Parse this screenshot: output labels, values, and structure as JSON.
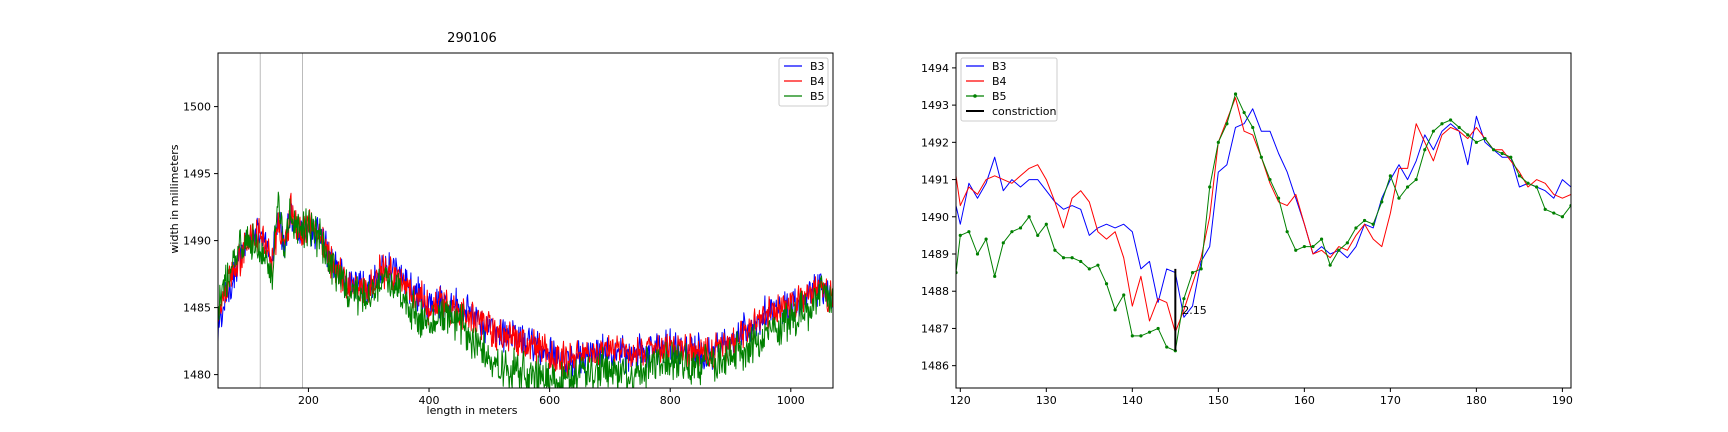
{
  "chart_data": [
    {
      "type": "line",
      "title": "290106",
      "xlabel": "length in meters",
      "ylabel": "width in millimeters",
      "xlim": [
        50,
        1070
      ],
      "ylim": [
        1479,
        1504
      ],
      "xticks": [
        200,
        400,
        600,
        800,
        1000
      ],
      "yticks": [
        1480,
        1485,
        1490,
        1495,
        1500
      ],
      "vlines": [
        120,
        190
      ],
      "legend_position": "top-right",
      "grid": false,
      "series": [
        {
          "name": "B3",
          "color": "#0000ff",
          "x": [
            50,
            60,
            80,
            100,
            120,
            140,
            150,
            160,
            170,
            180,
            190,
            200,
            220,
            240,
            260,
            280,
            300,
            320,
            350,
            380,
            400,
            420,
            450,
            470,
            500,
            530,
            560,
            600,
            630,
            660,
            700,
            730,
            760,
            800,
            830,
            860,
            900,
            930,
            960,
            1000,
            1030,
            1050,
            1070
          ],
          "values": [
            1483.0,
            1485.5,
            1488.0,
            1490.0,
            1490.8,
            1488.5,
            1492.0,
            1489.5,
            1492.0,
            1491.0,
            1490.5,
            1491.0,
            1490.5,
            1488.5,
            1487.0,
            1486.8,
            1486.5,
            1488.0,
            1487.5,
            1486.0,
            1485.0,
            1485.5,
            1485.0,
            1484.5,
            1483.5,
            1483.0,
            1482.5,
            1481.8,
            1481.0,
            1481.3,
            1482.0,
            1481.5,
            1481.8,
            1482.0,
            1482.0,
            1481.5,
            1482.5,
            1483.5,
            1484.5,
            1485.0,
            1486.0,
            1486.5,
            1485.5
          ]
        },
        {
          "name": "B4",
          "color": "#ff0000",
          "x": [
            50,
            60,
            80,
            100,
            120,
            140,
            150,
            160,
            170,
            180,
            190,
            200,
            220,
            240,
            260,
            280,
            300,
            320,
            350,
            380,
            400,
            420,
            450,
            470,
            500,
            530,
            560,
            600,
            630,
            660,
            700,
            730,
            760,
            800,
            830,
            860,
            900,
            930,
            960,
            1000,
            1030,
            1050,
            1070
          ],
          "values": [
            1484.0,
            1486.0,
            1488.0,
            1490.0,
            1490.5,
            1488.0,
            1491.5,
            1489.3,
            1492.3,
            1490.8,
            1490.5,
            1491.0,
            1490.3,
            1488.2,
            1487.0,
            1486.5,
            1486.3,
            1487.8,
            1487.3,
            1486.0,
            1485.0,
            1485.5,
            1484.8,
            1484.3,
            1483.3,
            1482.8,
            1482.5,
            1481.5,
            1481.0,
            1481.2,
            1482.0,
            1481.5,
            1481.8,
            1482.0,
            1481.8,
            1481.5,
            1482.3,
            1483.5,
            1484.5,
            1485.0,
            1486.0,
            1486.5,
            1485.5
          ]
        },
        {
          "name": "B5",
          "color": "#008000",
          "x": [
            50,
            60,
            80,
            100,
            120,
            140,
            150,
            160,
            170,
            180,
            190,
            200,
            220,
            240,
            260,
            280,
            300,
            320,
            350,
            380,
            400,
            420,
            450,
            470,
            500,
            530,
            560,
            600,
            630,
            660,
            700,
            730,
            760,
            800,
            830,
            860,
            900,
            930,
            960,
            1000,
            1030,
            1050,
            1070
          ],
          "values": [
            1485.0,
            1486.5,
            1489.0,
            1490.0,
            1489.5,
            1487.5,
            1493.0,
            1489.0,
            1492.0,
            1490.8,
            1490.8,
            1491.5,
            1490.0,
            1488.0,
            1486.5,
            1486.0,
            1485.5,
            1487.0,
            1486.0,
            1484.5,
            1483.5,
            1484.5,
            1484.0,
            1483.0,
            1481.0,
            1480.5,
            1480.0,
            1479.5,
            1479.8,
            1480.0,
            1480.5,
            1479.8,
            1480.5,
            1481.0,
            1480.8,
            1481.0,
            1481.5,
            1482.0,
            1483.0,
            1484.0,
            1485.0,
            1486.0,
            1485.5
          ]
        }
      ]
    },
    {
      "type": "line",
      "title": "",
      "xlabel": "",
      "ylabel": "",
      "xlim": [
        119.5,
        191
      ],
      "ylim": [
        1485.4,
        1494.4
      ],
      "xticks": [
        120,
        130,
        140,
        150,
        160,
        170,
        180,
        190
      ],
      "yticks": [
        1486,
        1487,
        1488,
        1489,
        1490,
        1491,
        1492,
        1493,
        1494
      ],
      "legend_position": "top-left",
      "grid": false,
      "constriction": {
        "name": "constriction",
        "x": 145,
        "y0": 1486.4,
        "y1": 1488.6,
        "color": "#000000"
      },
      "annotation": {
        "text": "2.15",
        "x": 145.8,
        "y": 1487.5
      },
      "series": [
        {
          "name": "B3",
          "color": "#0000ff",
          "marker": false,
          "x": [
            119.5,
            120,
            121,
            122,
            123,
            124,
            125,
            126,
            127,
            128,
            129,
            130,
            131,
            132,
            133,
            134,
            135,
            136,
            137,
            138,
            139,
            140,
            141,
            142,
            143,
            144,
            145,
            146,
            147,
            148,
            149,
            150,
            151,
            152,
            153,
            154,
            155,
            156,
            157,
            158,
            159,
            160,
            161,
            162,
            163,
            164,
            165,
            166,
            167,
            168,
            169,
            170,
            171,
            172,
            173,
            174,
            175,
            176,
            177,
            178,
            179,
            180,
            181,
            182,
            183,
            184,
            185,
            186,
            187,
            188,
            189,
            190,
            191
          ],
          "values": [
            1490.3,
            1489.8,
            1490.9,
            1490.5,
            1490.9,
            1491.6,
            1490.7,
            1491.0,
            1490.8,
            1491.0,
            1491.0,
            1490.7,
            1490.4,
            1490.2,
            1490.3,
            1490.2,
            1489.5,
            1489.7,
            1489.8,
            1489.7,
            1489.8,
            1489.6,
            1488.6,
            1488.8,
            1487.7,
            1488.6,
            1488.5,
            1487.3,
            1487.6,
            1488.8,
            1489.2,
            1491.2,
            1491.4,
            1492.4,
            1492.5,
            1492.9,
            1492.3,
            1492.3,
            1491.7,
            1491.2,
            1490.5,
            1489.8,
            1489.0,
            1489.2,
            1489.0,
            1489.1,
            1488.9,
            1489.2,
            1489.8,
            1489.7,
            1490.5,
            1491.0,
            1491.4,
            1491.0,
            1491.5,
            1492.2,
            1491.8,
            1492.3,
            1492.5,
            1492.3,
            1491.4,
            1492.7,
            1492.0,
            1491.8,
            1491.6,
            1491.6,
            1490.8,
            1490.9,
            1490.8,
            1490.7,
            1490.5,
            1491.0,
            1490.8
          ]
        },
        {
          "name": "B4",
          "color": "#ff0000",
          "marker": false,
          "x": [
            119.5,
            120,
            121,
            122,
            123,
            124,
            125,
            126,
            127,
            128,
            129,
            130,
            131,
            132,
            133,
            134,
            135,
            136,
            137,
            138,
            139,
            140,
            141,
            142,
            143,
            144,
            145,
            146,
            147,
            148,
            149,
            150,
            151,
            152,
            153,
            154,
            155,
            156,
            157,
            158,
            159,
            160,
            161,
            162,
            163,
            164,
            165,
            166,
            167,
            168,
            169,
            170,
            171,
            172,
            173,
            174,
            175,
            176,
            177,
            178,
            179,
            180,
            181,
            182,
            183,
            184,
            185,
            186,
            187,
            188,
            189,
            190,
            191
          ],
          "values": [
            1491.1,
            1490.3,
            1490.8,
            1490.6,
            1491.0,
            1491.1,
            1491.0,
            1490.9,
            1491.1,
            1491.3,
            1491.4,
            1491.0,
            1490.4,
            1489.7,
            1490.5,
            1490.7,
            1490.4,
            1489.6,
            1489.4,
            1489.6,
            1488.9,
            1487.6,
            1488.4,
            1487.2,
            1487.8,
            1487.7,
            1486.9,
            1487.5,
            1488.2,
            1488.9,
            1490.0,
            1492.0,
            1492.6,
            1493.2,
            1492.3,
            1492.2,
            1491.6,
            1490.9,
            1490.4,
            1490.3,
            1490.6,
            1489.8,
            1489.0,
            1489.1,
            1488.9,
            1489.2,
            1489.1,
            1489.5,
            1489.8,
            1489.4,
            1489.2,
            1490.1,
            1491.3,
            1491.3,
            1492.5,
            1492.0,
            1491.5,
            1492.2,
            1492.4,
            1492.3,
            1492.1,
            1492.4,
            1492.1,
            1491.8,
            1491.8,
            1491.5,
            1491.2,
            1490.8,
            1491.0,
            1490.9,
            1490.6,
            1490.5,
            1490.6
          ]
        },
        {
          "name": "B5",
          "color": "#008000",
          "marker": true,
          "x": [
            119.5,
            120,
            121,
            122,
            123,
            124,
            125,
            126,
            127,
            128,
            129,
            130,
            131,
            132,
            133,
            134,
            135,
            136,
            137,
            138,
            139,
            140,
            141,
            142,
            143,
            144,
            145,
            146,
            147,
            148,
            149,
            150,
            151,
            152,
            153,
            154,
            155,
            156,
            157,
            158,
            159,
            160,
            161,
            162,
            163,
            164,
            165,
            166,
            167,
            168,
            169,
            170,
            171,
            172,
            173,
            174,
            175,
            176,
            177,
            178,
            179,
            180,
            181,
            182,
            183,
            184,
            185,
            186,
            187,
            188,
            189,
            190,
            191
          ],
          "values": [
            1488.5,
            1489.5,
            1489.6,
            1489.0,
            1489.4,
            1488.4,
            1489.3,
            1489.6,
            1489.7,
            1490.0,
            1489.5,
            1489.8,
            1489.1,
            1488.9,
            1488.9,
            1488.8,
            1488.6,
            1488.7,
            1488.2,
            1487.5,
            1487.9,
            1486.8,
            1486.8,
            1486.9,
            1487.0,
            1486.5,
            1486.4,
            1487.8,
            1488.5,
            1488.6,
            1490.8,
            1492.0,
            1492.5,
            1493.3,
            1492.8,
            1492.4,
            1491.6,
            1491.0,
            1490.5,
            1489.6,
            1489.1,
            1489.2,
            1489.2,
            1489.4,
            1488.7,
            1489.1,
            1489.3,
            1489.7,
            1489.9,
            1489.8,
            1490.4,
            1491.1,
            1490.5,
            1490.8,
            1491.0,
            1491.8,
            1492.3,
            1492.5,
            1492.6,
            1492.4,
            1492.2,
            1492.0,
            1492.1,
            1491.8,
            1491.7,
            1491.6,
            1491.1,
            1490.9,
            1490.8,
            1490.2,
            1490.1,
            1490.0,
            1490.3
          ]
        }
      ]
    }
  ]
}
